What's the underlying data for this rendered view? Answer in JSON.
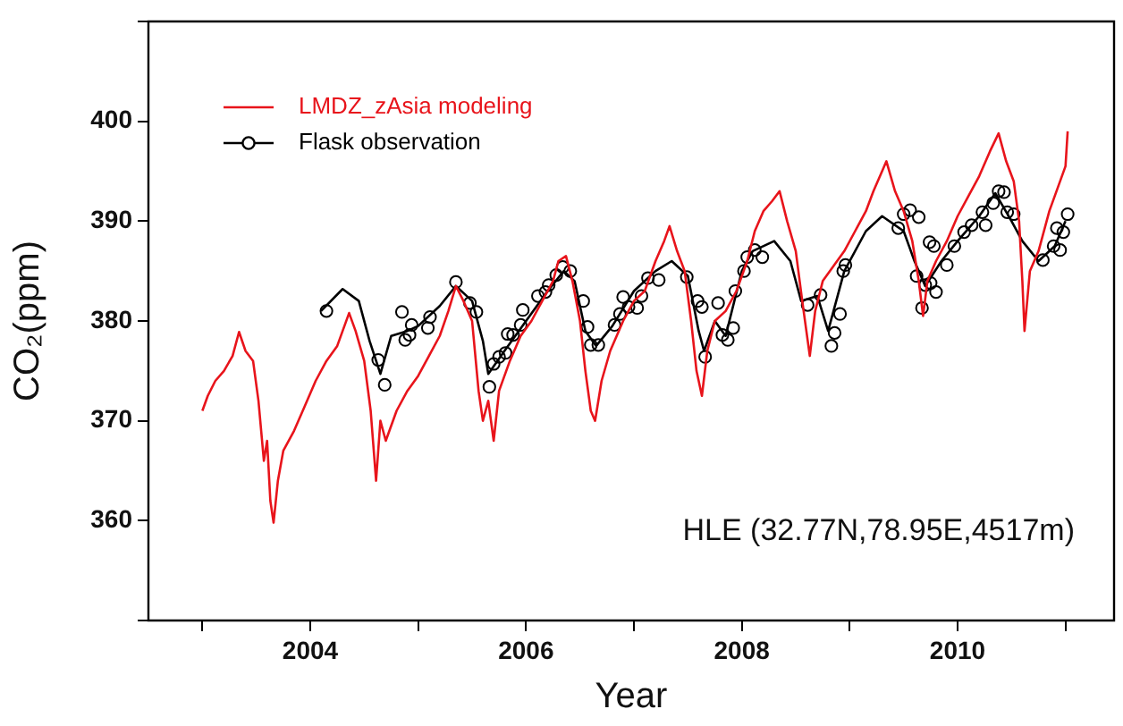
{
  "chart_data": {
    "type": "line",
    "xlabel": "Year",
    "ylabel": "CO₂(ppm)",
    "annotations": [
      "HLE (32.77N,78.95E,4517m)"
    ],
    "xlim": [
      2002.5,
      2011.45
    ],
    "xticks": [
      {
        "value": 2003,
        "label": null
      },
      2004,
      {
        "value": 2005,
        "label": null
      },
      2006,
      {
        "value": 2007,
        "label": null
      },
      2008,
      {
        "value": 2009,
        "label": null
      },
      2010,
      {
        "value": 2011,
        "label": null
      }
    ],
    "ylim": [
      350,
      410
    ],
    "yticks": [
      {
        "value": 350,
        "label": null
      },
      360,
      370,
      380,
      390,
      400,
      {
        "value": 410,
        "label": null
      }
    ],
    "legend": "top left",
    "series": [
      {
        "name": "LMDZ_zAsia modeling",
        "color": "#e8141b",
        "x": [
          2003.0,
          2003.05,
          2003.12,
          2003.2,
          2003.28,
          2003.34,
          2003.4,
          2003.47,
          2003.52,
          2003.57,
          2003.6,
          2003.63,
          2003.66,
          2003.7,
          2003.75,
          2003.85,
          2003.95,
          2004.05,
          2004.15,
          2004.25,
          2004.36,
          2004.42,
          2004.5,
          2004.56,
          2004.61,
          2004.65,
          2004.7,
          2004.8,
          2004.9,
          2005.0,
          2005.1,
          2005.2,
          2005.28,
          2005.35,
          2005.42,
          2005.5,
          2005.56,
          2005.6,
          2005.65,
          2005.7,
          2005.75,
          2005.85,
          2005.95,
          2006.05,
          2006.15,
          2006.25,
          2006.3,
          2006.37,
          2006.43,
          2006.5,
          2006.55,
          2006.6,
          2006.64,
          2006.7,
          2006.78,
          2006.9,
          2007.0,
          2007.1,
          2007.2,
          2007.28,
          2007.33,
          2007.4,
          2007.47,
          2007.53,
          2007.58,
          2007.63,
          2007.68,
          2007.75,
          2007.85,
          2007.95,
          2008.05,
          2008.12,
          2008.2,
          2008.28,
          2008.35,
          2008.42,
          2008.5,
          2008.56,
          2008.63,
          2008.68,
          2008.75,
          2008.85,
          2008.95,
          2009.05,
          2009.15,
          2009.22,
          2009.3,
          2009.34,
          2009.42,
          2009.5,
          2009.58,
          2009.64,
          2009.68,
          2009.72,
          2009.8,
          2009.9,
          2010.0,
          2010.1,
          2010.2,
          2010.3,
          2010.38,
          2010.45,
          2010.52,
          2010.57,
          2010.6,
          2010.62,
          2010.67,
          2010.75,
          2010.85,
          2010.95,
          2011.0,
          2011.02
        ],
        "values": [
          371,
          372.5,
          374,
          375,
          376.5,
          378.9,
          377,
          376,
          372,
          366,
          368,
          362,
          359.8,
          364,
          367,
          369,
          371.5,
          374,
          376,
          377.5,
          380.8,
          379,
          376,
          371,
          364,
          370,
          368,
          371,
          373,
          374.5,
          376.5,
          378.5,
          381,
          383.5,
          382,
          380,
          373,
          370,
          372,
          368,
          373,
          376,
          378.5,
          380,
          382,
          384,
          386,
          386.5,
          384,
          380,
          375,
          371,
          370,
          374,
          377,
          380,
          382,
          383,
          386,
          388,
          389.5,
          387,
          385,
          380,
          375,
          372.5,
          377,
          380,
          381,
          383,
          386,
          389,
          391,
          392,
          393,
          390,
          387,
          382,
          376.5,
          381,
          384,
          385.5,
          387,
          389,
          391,
          393,
          395,
          396,
          393,
          391,
          388,
          384,
          380.5,
          384,
          386,
          388,
          390.5,
          392.5,
          394.5,
          397,
          398.8,
          396,
          394,
          390,
          384,
          379,
          385,
          387,
          391,
          394,
          395.5,
          399
        ]
      },
      {
        "name": "Flask observation",
        "type": "scatter",
        "marker": "circle",
        "color": "#000000",
        "x": [
          2004.15,
          2004.63,
          2004.69,
          2004.85,
          2004.88,
          2004.92,
          2004.94,
          2005.09,
          2005.11,
          2005.35,
          2005.48,
          2005.54,
          2005.66,
          2005.7,
          2005.75,
          2005.81,
          2005.83,
          2005.88,
          2005.95,
          2005.97,
          2006.11,
          2006.18,
          2006.21,
          2006.28,
          2006.34,
          2006.41,
          2006.53,
          2006.57,
          2006.6,
          2006.67,
          2006.82,
          2006.87,
          2006.9,
          2006.95,
          2007.03,
          2007.07,
          2007.13,
          2007.23,
          2007.49,
          2007.59,
          2007.63,
          2007.66,
          2007.78,
          2007.82,
          2007.87,
          2007.92,
          2007.94,
          2008.02,
          2008.05,
          2008.12,
          2008.19,
          2008.61,
          2008.73,
          2008.83,
          2008.86,
          2008.91,
          2008.94,
          2008.96,
          2009.45,
          2009.5,
          2009.56,
          2009.62,
          2009.64,
          2009.67,
          2009.7,
          2009.74,
          2009.75,
          2009.78,
          2009.8,
          2009.9,
          2009.97,
          2010.06,
          2010.13,
          2010.23,
          2010.26,
          2010.33,
          2010.38,
          2010.43,
          2010.46,
          2010.52,
          2010.79,
          2010.89,
          2010.92,
          2010.95,
          2010.98,
          2011.02
        ],
        "values": [
          381.0,
          376.1,
          373.6,
          380.9,
          378.1,
          378.6,
          379.6,
          379.3,
          380.4,
          383.9,
          381.8,
          380.9,
          373.4,
          375.7,
          376.4,
          376.8,
          378.7,
          378.6,
          379.6,
          381.1,
          382.5,
          382.9,
          383.6,
          384.6,
          385.4,
          385.0,
          382.0,
          379.4,
          377.6,
          377.6,
          379.6,
          380.7,
          382.4,
          381.4,
          381.3,
          382.5,
          384.3,
          384.1,
          384.4,
          382.0,
          381.4,
          376.4,
          381.8,
          378.6,
          378.1,
          379.3,
          383.0,
          385.0,
          386.4,
          387.1,
          386.4,
          381.6,
          382.6,
          377.5,
          378.8,
          380.7,
          385.0,
          385.6,
          389.3,
          390.7,
          391.1,
          384.5,
          390.4,
          381.3,
          383.6,
          387.9,
          383.8,
          387.5,
          382.9,
          385.6,
          387.5,
          388.9,
          389.6,
          390.9,
          389.6,
          391.8,
          393.0,
          392.9,
          390.9,
          390.7,
          386.1,
          387.5,
          389.3,
          387.1,
          388.9,
          390.7
        ]
      },
      {
        "color": "#000000",
        "x": [
          2004.1,
          2004.3,
          2004.45,
          2004.55,
          2004.65,
          2004.75,
          2004.9,
          2005.0,
          2005.2,
          2005.35,
          2005.5,
          2005.6,
          2005.65,
          2005.8,
          2006.0,
          2006.2,
          2006.35,
          2006.45,
          2006.55,
          2006.65,
          2006.8,
          2007.0,
          2007.2,
          2007.35,
          2007.5,
          2007.6,
          2007.65,
          2007.75,
          2007.85,
          2008.0,
          2008.1,
          2008.3,
          2008.45,
          2008.55,
          2008.7,
          2008.8,
          2008.95,
          2009.15,
          2009.3,
          2009.5,
          2009.6,
          2009.7,
          2009.85,
          2010.0,
          2010.2,
          2010.35,
          2010.5,
          2010.6,
          2010.75,
          2010.9,
          2011.0
        ],
        "values": [
          381,
          383.2,
          382,
          378,
          374.7,
          378.5,
          379,
          379.5,
          381.5,
          383.5,
          382,
          378,
          374.7,
          377,
          380,
          383,
          385,
          384,
          379,
          377.5,
          379.5,
          383,
          385,
          386,
          384.5,
          379,
          377,
          380,
          378.5,
          385,
          387,
          388,
          386,
          382,
          382.5,
          379,
          385,
          389,
          390.5,
          389,
          386,
          383.5,
          386,
          388,
          390.5,
          392.8,
          390,
          388,
          386,
          387.5,
          390
        ]
      }
    ]
  }
}
